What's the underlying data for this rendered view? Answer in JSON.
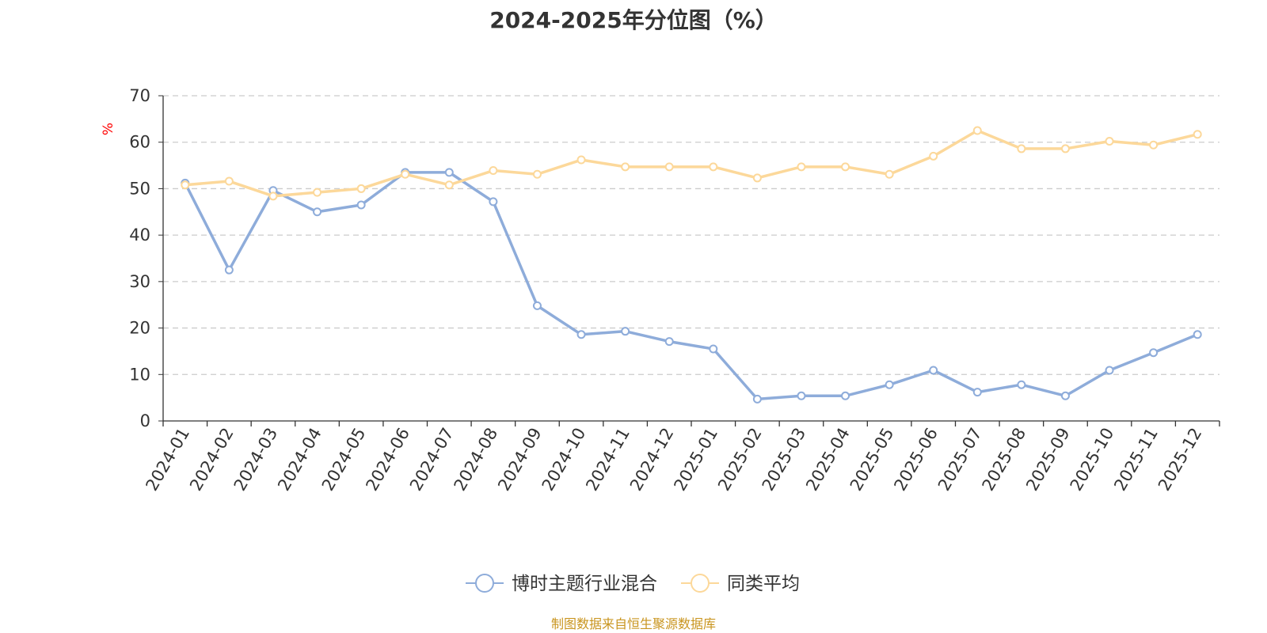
{
  "chart_data": {
    "type": "line",
    "title": "2024-2025年分位图（%）",
    "ylabel": "%",
    "xlabel": "",
    "ylim": [
      0,
      70
    ],
    "yticks": [
      0,
      10,
      20,
      30,
      40,
      50,
      60,
      70
    ],
    "grid": true,
    "legend_position": "bottom-center",
    "categories": [
      "2024-01",
      "2024-02",
      "2024-03",
      "2024-04",
      "2024-05",
      "2024-06",
      "2024-07",
      "2024-08",
      "2024-09",
      "2024-10",
      "2024-11",
      "2024-12",
      "2025-01",
      "2025-02",
      "2025-03",
      "2025-04",
      "2025-05",
      "2025-06",
      "2025-07",
      "2025-08",
      "2025-09",
      "2025-10",
      "2025-11",
      "2025-12"
    ],
    "series": [
      {
        "name": "博时主题行业混合",
        "color": "#8eacda",
        "values": [
          51.2,
          32.5,
          49.6,
          45.0,
          46.5,
          53.5,
          53.5,
          47.2,
          24.8,
          18.6,
          19.3,
          17.1,
          15.5,
          4.7,
          5.4,
          5.4,
          7.8,
          10.9,
          6.2,
          7.8,
          5.4,
          10.9,
          14.7,
          18.6
        ]
      },
      {
        "name": "同类平均",
        "color": "#fcd89a",
        "values": [
          50.8,
          51.6,
          48.4,
          49.2,
          50.0,
          53.1,
          50.8,
          53.9,
          53.1,
          56.2,
          54.7,
          54.7,
          54.7,
          52.3,
          54.7,
          54.7,
          53.1,
          57.0,
          62.5,
          58.6,
          58.6,
          60.2,
          59.4,
          61.7
        ]
      }
    ]
  },
  "axis_label_color": "#ff0000",
  "grid_color": "#cccccc",
  "source_note": "制图数据来自恒生聚源数据库"
}
